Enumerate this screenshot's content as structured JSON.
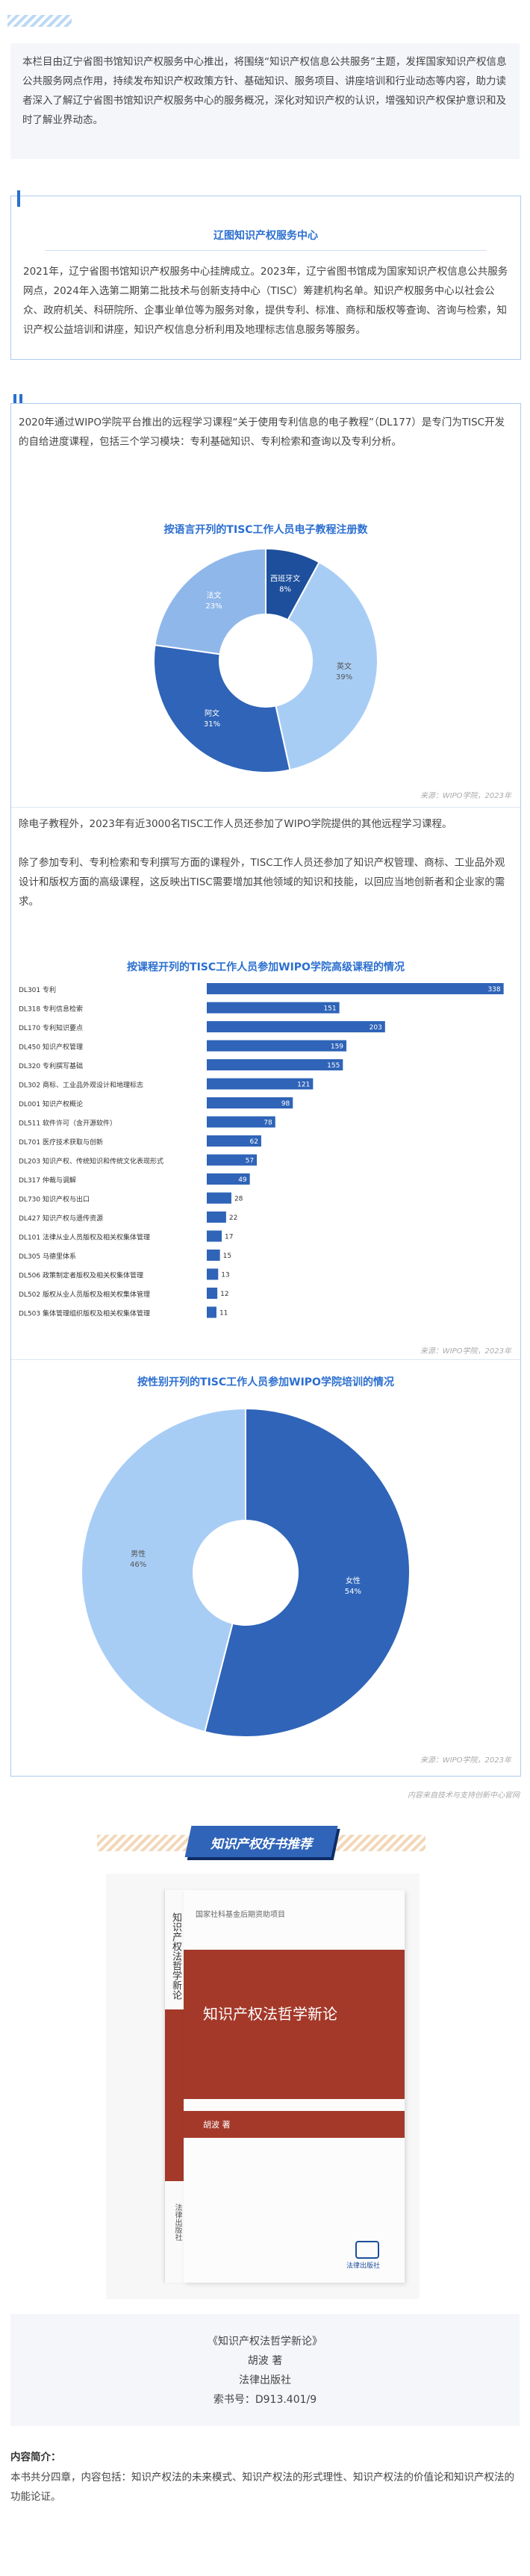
{
  "intro": "本栏目由辽宁省图书馆知识产权服务中心推出，将围绕“知识产权信息公共服务”主题，发挥国家知识产权信息公共服务网点作用，持续发布知识产权政策方针、基础知识、服务项目、讲座培训和行业动态等内容，助力读者深入了解辽宁省图书馆知识产权服务中心的服务概况，深化对知识产权的认识，增强知识产权保护意识和及时了解业界动态。",
  "center": {
    "title": "辽图知识产权服务中心",
    "body": "2021年，辽宁省图书馆知识产权服务中心挂牌成立。2023年，辽宁省图书馆成为国家知识产权信息公共服务网点，2024年入选第二期第二批技术与创新支持中心（TISC）筹建机构名单。知识产权服务中心以社会公众、政府机关、科研院所、企事业单位等为服务对象，提供专利、标准、商标和版权等查询、咨询与检索，知识产权公益培训和讲座，知识产权信息分析利用及地理标志信息服务等服务。"
  },
  "article": {
    "p1": "2020年通过WIPO学院平台推出的远程学习课程“关于使用专利信息的电子教程”（DL177）是专门为TISC开发的自给进度课程，包括三个学习模块：专利基础知识、专利检索和查询以及专利分析。",
    "p2": "除电子教程外，2023年有近3000名TISC工作人员还参加了WIPO学院提供的其他远程学习课程。",
    "p3": "除了参加专利、专利检索和专利撰写方面的课程外，TISC工作人员还参加了知识产权管理、商标、工业品外观设计和版权方面的高级课程，这反映出TISC需要增加其他领域的知识和技能，以回应当地创新者和企业家的需求。"
  },
  "chart_data": [
    {
      "type": "pie",
      "title": "按语言开列的TISC工作人员电子教程注册数",
      "labels": [
        "西班牙文",
        "英文",
        "阿文",
        "法文"
      ],
      "values": [
        8,
        39,
        31,
        23
      ],
      "value_labels": [
        "8%",
        "39%",
        "31%",
        "23%"
      ],
      "colors": [
        "#1d4f9c",
        "#a8cdf5",
        "#2f64b8",
        "#8fb7ea"
      ],
      "source": "来源：WIPO学院，2023年"
    },
    {
      "type": "bar",
      "title": "按课程开列的TISC工作人员参加WIPO学院高级课程的情况",
      "categories": [
        "DL301 专利",
        "DL318 专利信息检索",
        "DL170 专利知识要点",
        "DL450 知识产权管理",
        "DL320 专利撰写基础",
        "DL302 商标、工业品外观设计和地理标志",
        "DL001 知识产权概论",
        "DL511 软件许可（含开源软件）",
        "DL701 医疗技术获取与创新",
        "DL203 知识产权、传统知识和传统文化表现形式",
        "DL317 仲裁与调解",
        "DL730 知识产权与出口",
        "DL427 知识产权与遗传资源",
        "DL101 法律从业人员版权及相关权集体管理",
        "DL305 马德里体系",
        "DL506 政策制定者版权及相关权集体管理",
        "DL502 版权从业人员版权及相关权集体管理",
        "DL503 集体管理组织版权及相关权集体管理"
      ],
      "values": [
        338,
        151,
        203,
        159,
        155,
        121,
        98,
        78,
        62,
        57,
        49,
        28,
        22,
        17,
        15,
        13,
        12,
        11
      ],
      "bar_color": "#2f64b8",
      "xlim": [
        0,
        340
      ],
      "source": "来源：WIPO学院，2023年"
    },
    {
      "type": "pie",
      "title": "按性别开列的TISC工作人员参加WIPO学院培训的情况",
      "labels": [
        "女性",
        "男性"
      ],
      "values": [
        54,
        46
      ],
      "value_labels": [
        "54%",
        "46%"
      ],
      "colors": [
        "#2f64b8",
        "#a8cdf5"
      ],
      "source": "来源：WIPO学院，2023年"
    }
  ],
  "content_source": "内容来自技术与支持创新中心官网",
  "book": {
    "header_badge": "知识产权好书推荐",
    "series": "国家社科基金后期资助项目",
    "title": "知识产权法哲学新论",
    "author_cover": "胡波 著",
    "publisher_cover": "法律出版社",
    "spine_title": "知识产权法哲学新论",
    "caption_title": "《知识产权法哲学新论》",
    "caption_author": "胡波 著",
    "caption_publisher": "法律出版社",
    "caption_callno": "索书号：D913.401/9",
    "summary_label": "内容简介：",
    "summary": "本书共分四章，内容包括：知识产权法的未来模式、知识产权法的形式理性、知识产权法的价值论和知识产权法的功能论证。"
  }
}
